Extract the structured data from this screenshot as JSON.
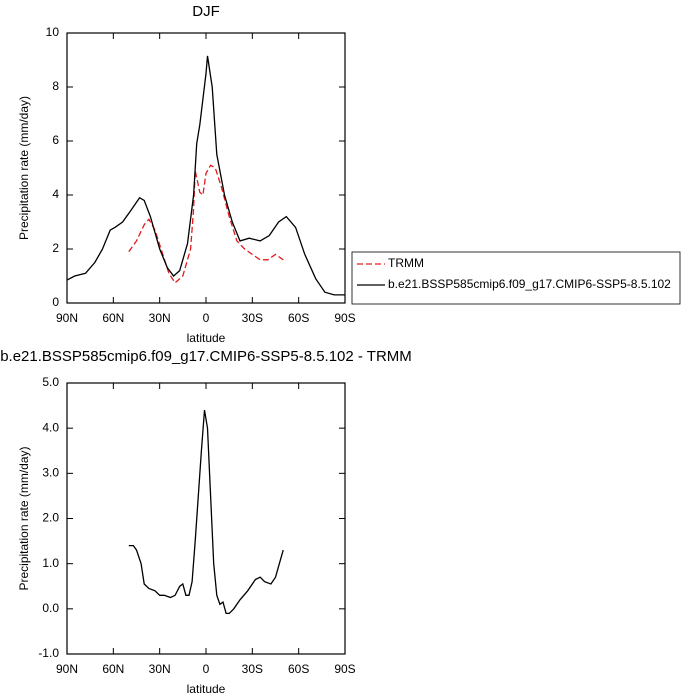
{
  "chart_data": [
    {
      "type": "line",
      "title": "DJF",
      "x_label": "latitude",
      "y_label": "Precipitation rate (mm/day)",
      "xlim": [
        90,
        -90
      ],
      "xticks": [
        {
          "value": 90,
          "label": "90N"
        },
        {
          "value": 60,
          "label": "60N"
        },
        {
          "value": 30,
          "label": "30N"
        },
        0,
        {
          "value": -30,
          "label": "30S"
        },
        {
          "value": -60,
          "label": "60S"
        },
        {
          "value": -90,
          "label": "90S"
        }
      ],
      "ylim": [
        0,
        10
      ],
      "yticks": [
        0,
        2,
        4,
        6,
        8,
        10
      ],
      "legend": "right",
      "series": [
        {
          "name": "TRMM",
          "color": "#e41a1c",
          "line_style": "dashed",
          "x": [
            50,
            45,
            40,
            37,
            33,
            28,
            24,
            20,
            15,
            10,
            8,
            7,
            4,
            2,
            0,
            -3,
            -6,
            -10,
            -15,
            -20,
            -25,
            -30,
            -35,
            -40,
            -45,
            -50
          ],
          "values": [
            1.9,
            2.3,
            2.9,
            3.1,
            2.7,
            1.8,
            1.1,
            0.75,
            1.0,
            2.0,
            3.5,
            4.9,
            4.1,
            4.0,
            4.8,
            5.1,
            5.0,
            4.3,
            3.2,
            2.3,
            2.0,
            1.8,
            1.6,
            1.6,
            1.8,
            1.6
          ]
        },
        {
          "name": "b.e21.BSSP585cmip6.f09_g17.CMIP6-SSP5-8.5.102",
          "color": "#000000",
          "line_style": "solid",
          "x": [
            90,
            85,
            78,
            72,
            67,
            62,
            59,
            54,
            49,
            43,
            40,
            36,
            30,
            25,
            21,
            17,
            12,
            8,
            6,
            4,
            0,
            -1,
            -4,
            -7,
            -12,
            -17,
            -22,
            -28,
            -35,
            -41,
            -47,
            -52,
            -58,
            -64,
            -71,
            -77,
            -83,
            -90
          ],
          "values": [
            0.85,
            1.0,
            1.1,
            1.5,
            2.0,
            2.7,
            2.8,
            3.0,
            3.4,
            3.9,
            3.8,
            3.2,
            2.0,
            1.3,
            1.0,
            1.2,
            2.2,
            4.0,
            5.9,
            6.6,
            8.5,
            9.15,
            8.0,
            5.5,
            4.0,
            3.0,
            2.3,
            2.4,
            2.3,
            2.5,
            3.0,
            3.2,
            2.8,
            1.8,
            0.9,
            0.4,
            0.3,
            0.3
          ]
        }
      ]
    },
    {
      "type": "line",
      "title": "b.e21.BSSP585cmip6.f09_g17.CMIP6-SSP5-8.5.102 - TRMM",
      "x_label": "latitude",
      "y_label": "Precipitation rate (mm/day)",
      "xlim": [
        90,
        -90
      ],
      "xticks": [
        {
          "value": 90,
          "label": "90N"
        },
        {
          "value": 60,
          "label": "60N"
        },
        {
          "value": 30,
          "label": "30N"
        },
        0,
        {
          "value": -30,
          "label": "30S"
        },
        {
          "value": -60,
          "label": "60S"
        },
        {
          "value": -90,
          "label": "90S"
        }
      ],
      "ylim": [
        -1,
        5
      ],
      "yticks": [
        {
          "value": -1,
          "label": "-1.0"
        },
        {
          "value": 0,
          "label": "0.0"
        },
        {
          "value": 1,
          "label": "1.0"
        },
        {
          "value": 2,
          "label": "2.0"
        },
        {
          "value": 3,
          "label": "3.0"
        },
        {
          "value": 4,
          "label": "4.0"
        },
        {
          "value": 5,
          "label": "5.0"
        }
      ],
      "series": [
        {
          "color": "#000000",
          "line_style": "solid",
          "x": [
            50,
            47,
            45,
            42,
            40,
            37,
            33,
            30,
            27,
            23,
            20,
            17,
            15,
            13,
            11,
            9,
            7,
            5,
            3,
            1,
            -1,
            -3,
            -5,
            -7,
            -9,
            -11,
            -13,
            -15,
            -18,
            -22,
            -27,
            -32,
            -35,
            -38,
            -42,
            -45,
            -50
          ],
          "values": [
            1.4,
            1.4,
            1.3,
            1.0,
            0.55,
            0.45,
            0.4,
            0.3,
            0.3,
            0.25,
            0.3,
            0.5,
            0.55,
            0.3,
            0.3,
            0.6,
            1.5,
            2.5,
            3.5,
            4.4,
            4.0,
            2.5,
            1.0,
            0.3,
            0.1,
            0.15,
            -0.1,
            -0.1,
            0.0,
            0.2,
            0.4,
            0.65,
            0.7,
            0.6,
            0.55,
            0.7,
            1.3
          ]
        }
      ]
    }
  ]
}
